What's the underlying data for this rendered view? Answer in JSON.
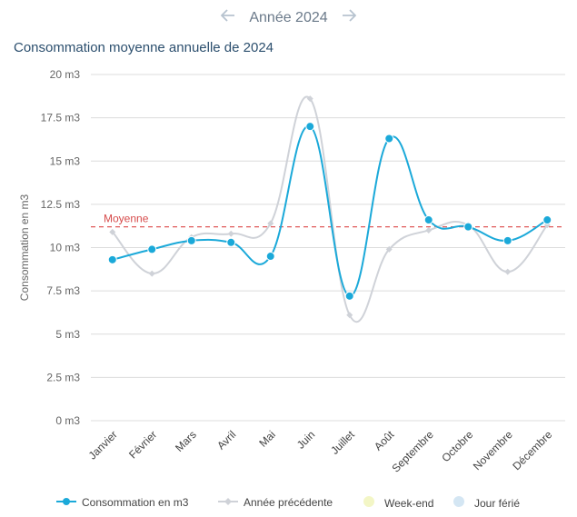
{
  "header": {
    "prev_icon": "arrow-left-icon",
    "next_icon": "arrow-right-icon",
    "year_label": "Année 2024"
  },
  "chart_data": {
    "type": "line",
    "title": "Consommation moyenne annuelle de 2024",
    "ylabel": "Consommation en m3",
    "xlabel": "",
    "ylim": [
      0,
      20
    ],
    "yticks": [
      "0 m3",
      "2.5 m3",
      "5 m3",
      "7.5 m3",
      "10 m3",
      "12.5 m3",
      "15 m3",
      "17.5 m3",
      "20 m3"
    ],
    "categories": [
      "Janvier",
      "Février",
      "Mars",
      "Avril",
      "Mai",
      "Juin",
      "Juillet",
      "Août",
      "Septembre",
      "Octobre",
      "Novembre",
      "Décembre"
    ],
    "series": [
      {
        "name": "Consommation en m3",
        "color": "#1ba9d9",
        "values": [
          9.3,
          9.9,
          10.4,
          10.3,
          9.5,
          17.0,
          7.2,
          16.3,
          11.6,
          11.2,
          10.4,
          11.6
        ]
      },
      {
        "name": "Année précédente",
        "color": "#cfd2d8",
        "values": [
          10.9,
          8.5,
          10.6,
          10.8,
          11.4,
          18.6,
          6.1,
          9.9,
          11.0,
          11.3,
          8.6,
          11.3
        ]
      }
    ],
    "reference_line": {
      "label": "Moyenne",
      "value": 11.2,
      "color": "#e05a5a"
    },
    "legend": [
      {
        "name": "Consommation en m3",
        "color": "#1ba9d9",
        "marker": "circle"
      },
      {
        "name": "Année précédente",
        "color": "#cfd2d8",
        "marker": "diamond"
      },
      {
        "name": "Week-end",
        "color": "#f3f6c6",
        "marker": "circle"
      },
      {
        "name": "Jour férié",
        "color": "#d4e6f3",
        "marker": "circle"
      }
    ]
  }
}
